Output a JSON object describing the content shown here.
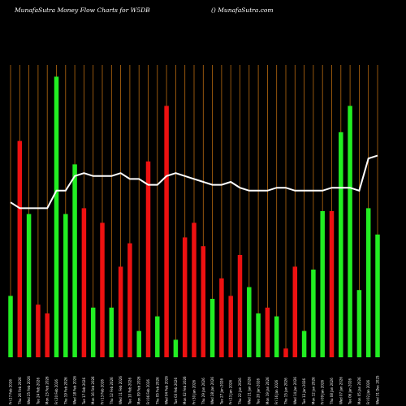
{
  "header": {
    "title": "MunafaSutra  Money Flow  Charts for W5DB",
    "credit": "() MunafaSutra.com"
  },
  "colors": {
    "background": "#000000",
    "up": "#22ee22",
    "down": "#ee1111",
    "line": "#ffffff",
    "grid": "#b86a10"
  },
  "chart_data": {
    "type": "bar",
    "grid": true,
    "categories": [
      "Fri 27 Feb 2026",
      "Thu 26 Feb 2026",
      "Wed 25 Feb 2026",
      "Tue 24 Feb 2026",
      "Mon 23 Feb 2026",
      "Fri 20 Feb 2026",
      "Thu 19 Feb 2026",
      "Wed 18 Feb 2026",
      "Tue 17 Feb 2026",
      "Mon 16 Feb 2026",
      "Fri 13 Feb 2026",
      "Thu 12 Feb 2026",
      "Wed 11 Feb 2026",
      "Tue 10 Feb 2026",
      "Mon 09 Feb 2026",
      "Fri 06 Feb 2026",
      "Thu 05 Feb 2026",
      "Wed 04 Feb 2026",
      "Tue 03 Feb 2026",
      "Mon 02 Feb 2026",
      "Fri 30 Jan 2026",
      "Thu 29 Jan 2026",
      "Wed 28 Jan 2026",
      "Tue 27 Jan 2026",
      "Fri 23 Jan 2026",
      "Thu 22 Jan 2026",
      "Wed 21 Jan 2026",
      "Tue 20 Jan 2026",
      "Mon 19 Jan 2026",
      "Fri 16 Jan 2026",
      "Thu 15 Jan 2026",
      "Wed 14 Jan 2026",
      "Tue 13 Jan 2026",
      "Mon 12 Jan 2026",
      "Fri 09 Jan 2026",
      "Thu 08 Jan 2026",
      "Wed 07 Jan 2026",
      "Tue 06 Jan 2026",
      "Mon 05 Jan 2026",
      "Fri 02 Jan 2026",
      "Wed 31 Dec 2025"
    ],
    "flow": [
      "up",
      "down",
      "up",
      "down",
      "down",
      "up",
      "up",
      "up",
      "down",
      "up",
      "down",
      "up",
      "down",
      "down",
      "up",
      "down",
      "up",
      "down",
      "up",
      "down",
      "down",
      "down",
      "up",
      "down",
      "down",
      "down",
      "up",
      "up",
      "down",
      "up",
      "down",
      "down",
      "up",
      "up",
      "up",
      "down",
      "up",
      "up",
      "up",
      "up",
      "up"
    ],
    "values": [
      21,
      74,
      49,
      18,
      15,
      96,
      49,
      66,
      51,
      17,
      46,
      17,
      31,
      39,
      9,
      67,
      14,
      86,
      6,
      41,
      46,
      38,
      20,
      27,
      21,
      35,
      24,
      15,
      17,
      14,
      3,
      31,
      9,
      30,
      50,
      50,
      77,
      86,
      23,
      51,
      42
    ],
    "line_values": [
      53,
      51,
      51,
      51,
      51,
      57,
      57,
      62,
      63,
      62,
      62,
      62,
      63,
      61,
      61,
      59,
      59,
      62,
      63,
      62,
      61,
      60,
      59,
      59,
      60,
      58,
      57,
      57,
      57,
      58,
      58,
      57,
      57,
      57,
      57,
      58,
      58,
      58,
      57,
      68,
      69
    ],
    "ylim": [
      0,
      100
    ]
  }
}
